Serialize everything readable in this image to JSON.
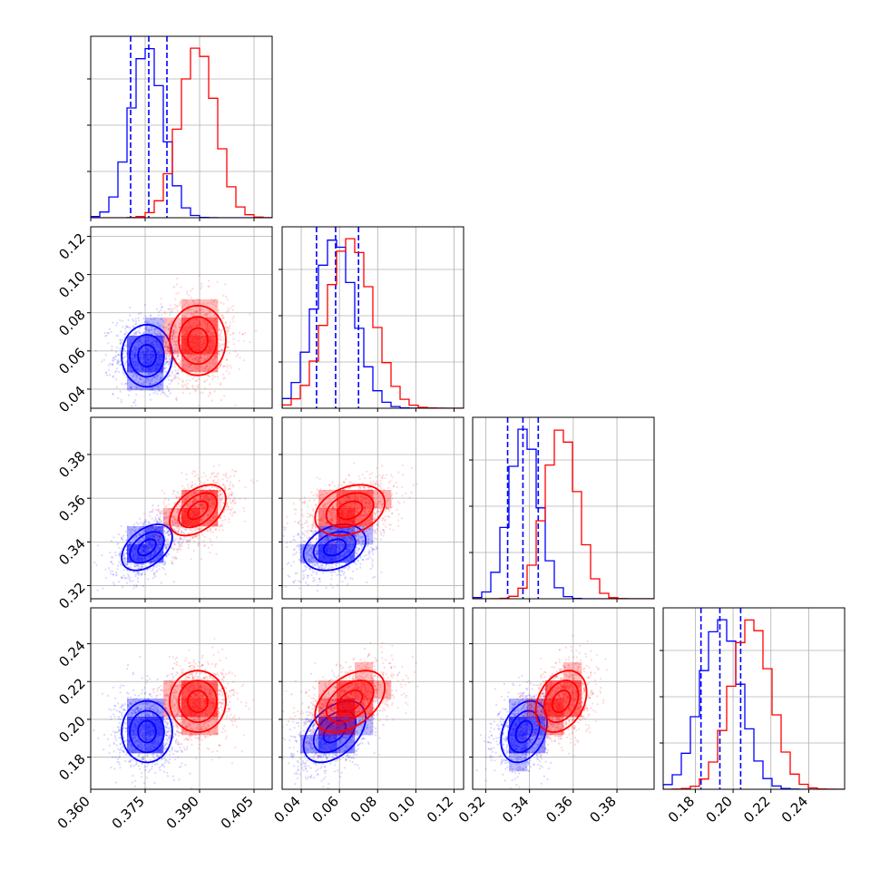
{
  "chart_data": {
    "type": "corner",
    "grid": true,
    "parameters": [
      {
        "range": [
          0.36,
          0.41
        ],
        "ticks": [
          "0.360",
          "0.375",
          "0.390",
          "0.405"
        ]
      },
      {
        "range": [
          0.03,
          0.125
        ],
        "ticks": [
          "0.04",
          "0.06",
          "0.08",
          "0.10",
          "0.12"
        ]
      },
      {
        "range": [
          0.314,
          0.397
        ],
        "ticks": [
          "0.32",
          "0.34",
          "0.36",
          "0.38"
        ]
      },
      {
        "range": [
          0.163,
          0.259
        ],
        "ticks": [
          "0.18",
          "0.20",
          "0.22",
          "0.24"
        ]
      }
    ],
    "series": [
      {
        "color": "#0000ff",
        "mean": [
          0.3755,
          0.0575,
          0.3375,
          0.1935
        ],
        "sd": [
          0.0045,
          0.0105,
          0.0068,
          0.0105
        ],
        "corr": [
          [
            1,
            0,
            0.45,
            0
          ],
          [
            0,
            1,
            0.3,
            0.45
          ],
          [
            0.45,
            0.3,
            1,
            0.3
          ],
          [
            0,
            0.45,
            0.3,
            1
          ]
        ],
        "quantiles": [
          [
            0.371,
            0.376,
            0.381
          ],
          [
            0.048,
            0.058,
            0.07
          ],
          [
            0.33,
            0.337,
            0.344
          ],
          [
            0.183,
            0.193,
            0.204
          ]
        ]
      },
      {
        "color": "#ff0000",
        "mean": [
          0.3895,
          0.0655,
          0.3545,
          0.2095
        ],
        "sd": [
          0.005,
          0.0118,
          0.0075,
          0.0105
        ],
        "corr": [
          [
            1,
            0,
            0.45,
            0
          ],
          [
            0,
            1,
            0.3,
            0.45
          ],
          [
            0.45,
            0.3,
            1,
            0.3
          ],
          [
            0,
            0.45,
            0.3,
            1
          ]
        ]
      }
    ]
  }
}
